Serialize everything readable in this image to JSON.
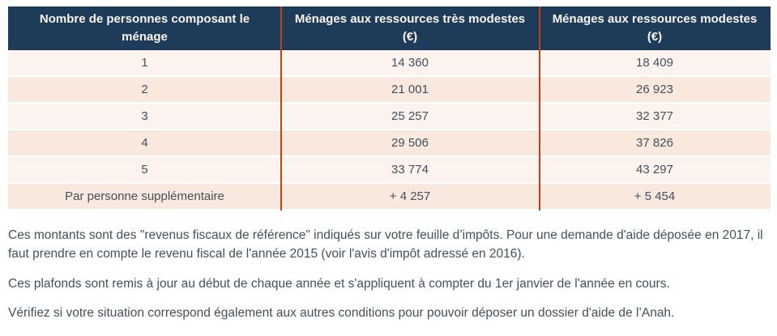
{
  "colors": {
    "header_bg": "#1e3c59",
    "header_text": "#f9f4ee",
    "separator": "#b5441a",
    "row_light": "#fdf3ee",
    "row_dark": "#f8e8de",
    "body_text": "#44505c"
  },
  "table": {
    "columns": [
      "Nombre de personnes composant le ménage",
      "Ménages aux ressources très modestes (€)",
      "Ménages aux ressources modestes (€)"
    ],
    "rows": [
      [
        "1",
        "14 360",
        "18 409"
      ],
      [
        "2",
        "21 001",
        "26 923"
      ],
      [
        "3",
        "25 257",
        "32 377"
      ],
      [
        "4",
        "29 506",
        "37 826"
      ],
      [
        "5",
        "33 774",
        "43 297"
      ],
      [
        "Par personne supplémentaire",
        "+ 4 257",
        "+ 5 454"
      ]
    ]
  },
  "paragraphs": [
    "Ces montants sont des \"revenus fiscaux de référence\" indiqués sur votre feuille d’impôts. Pour une demande d'aide déposée en 2017, il faut prendre en compte le revenu fiscal de l'année 2015 (voir l'avis d'impôt adressé en 2016).",
    "Ces plafonds sont remis à jour au début de chaque année et s'appliquent à compter du 1er janvier de l'année en cours.",
    "Vérifiez si votre situation correspond également aux autres conditions pour pouvoir déposer un dossier d'aide de l’Anah."
  ]
}
